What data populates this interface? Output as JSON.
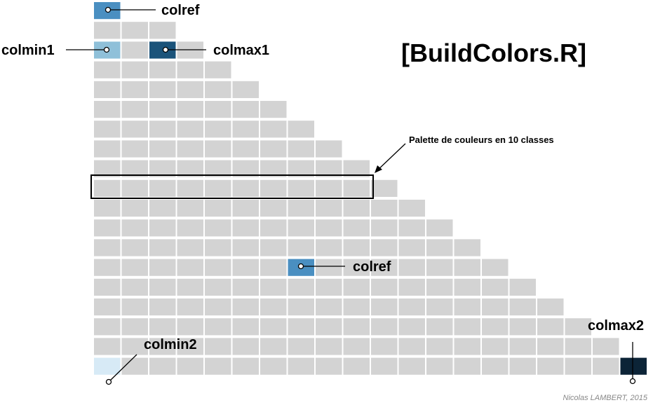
{
  "title": "[BuildColors.R]",
  "palette_annotation": "Palette de couleurs en 10 classes",
  "credit": "Nicolas LAMBERT, 2015",
  "grid": {
    "cell_color": "#d3d3d3",
    "rows": 19,
    "cols_first_row": 2,
    "cols_last_row": 20,
    "highlighted_row_classes": 10
  },
  "colors": {
    "colref": "#4a8fc1",
    "colmin1": "#8fc0d9",
    "colmax1": "#1a537a",
    "colmin2": "#d7eaf6",
    "colmax2": "#0c2437",
    "outline": "#000000"
  },
  "labels": {
    "colref_top": "colref",
    "colmin1": "colmin1",
    "colmax1": "colmax1",
    "colref_mid": "colref",
    "colmin2": "colmin2",
    "colmax2": "colmax2"
  }
}
